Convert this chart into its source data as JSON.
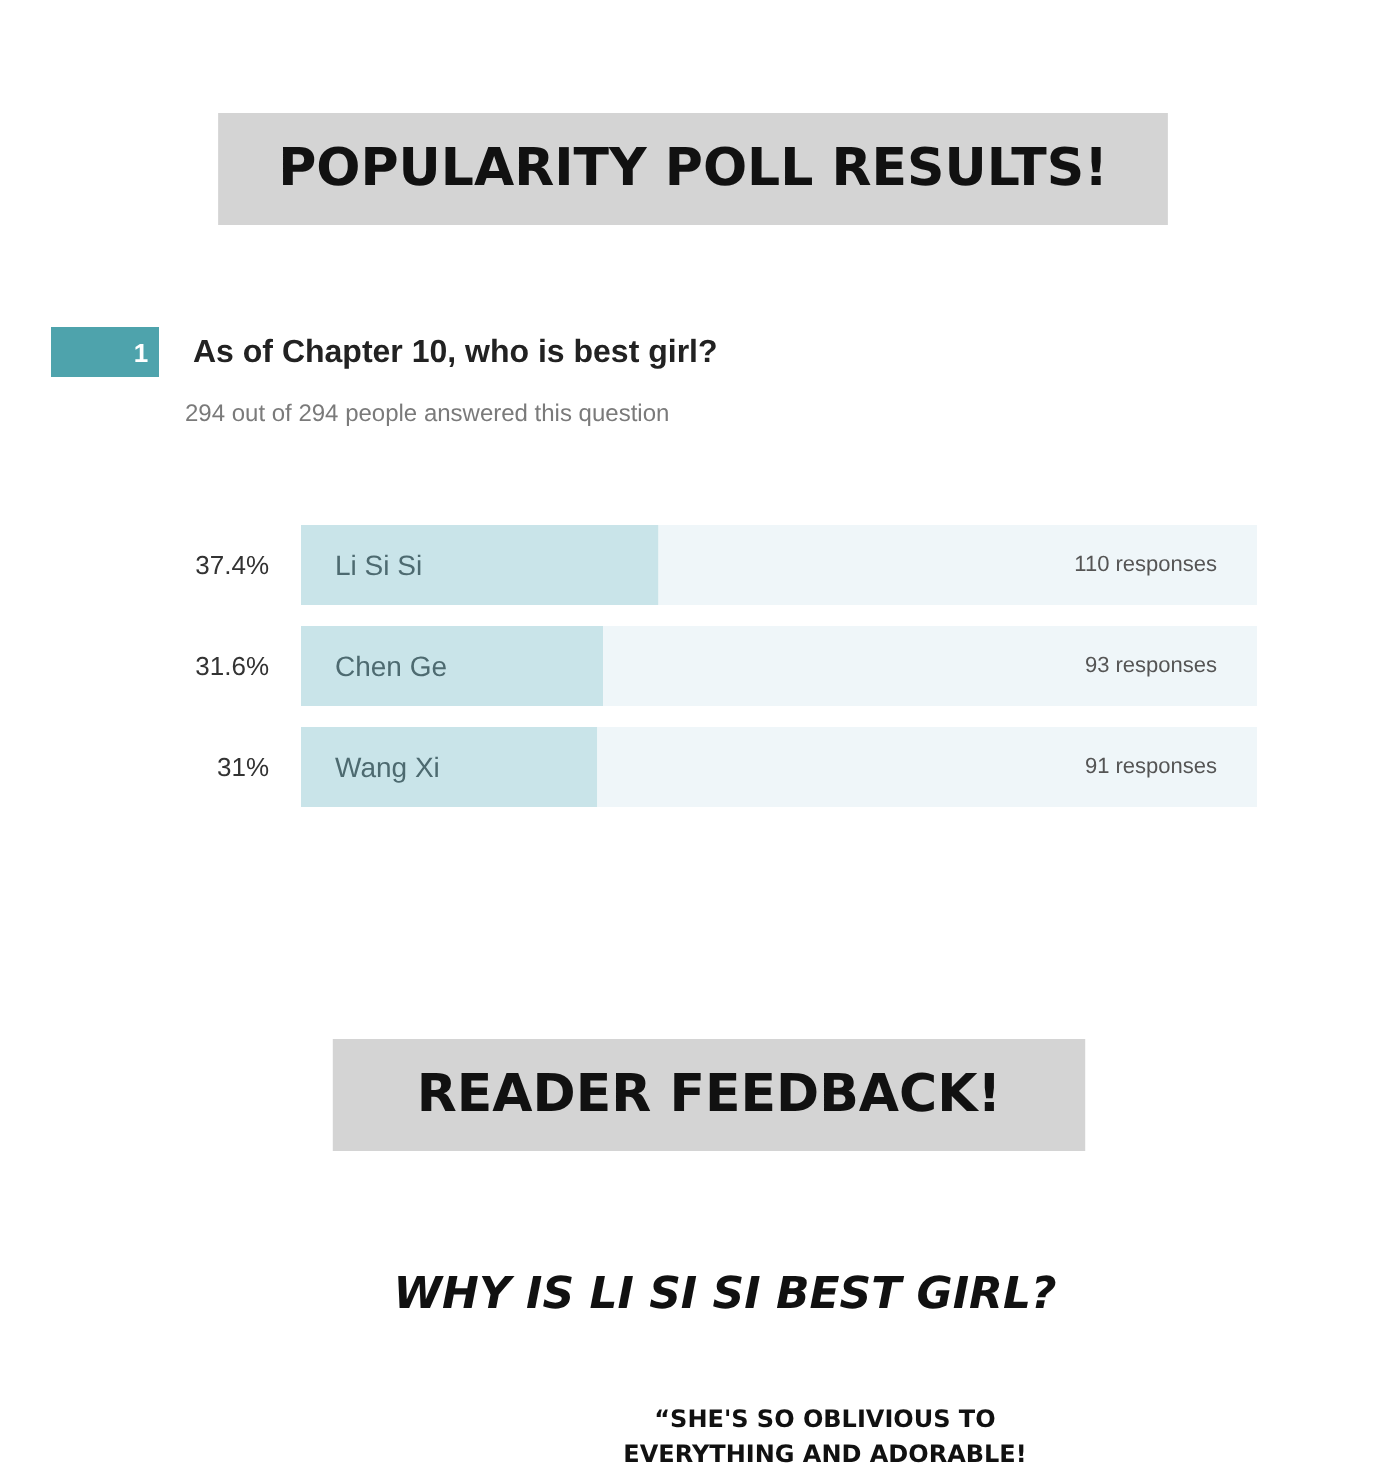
{
  "chart_data": {
    "type": "bar",
    "orientation": "horizontal",
    "stacked": true,
    "title": "POPULARITY POLL RESULTS!",
    "subtitle": "As of Chapter 10, who is best girl?",
    "categories": [
      "Li Si Si",
      "Chen Ge",
      "Wang Xi"
    ],
    "series": [
      {
        "color": "#c9e4e9",
        "values": [
          37.4,
          31.6,
          31
        ],
        "value_labels": [
          "37.4%",
          "31.6%",
          "31%"
        ]
      },
      {
        "color": "#eff6f9",
        "values": [
          62.6,
          68.4,
          69
        ]
      }
    ],
    "xlim": [
      0,
      100
    ],
    "tick_labels": false,
    "annotations": [
      "1",
      "294 out of 294 people answered this question",
      {
        "text": "110 responses",
        "y": "Li Si Si"
      },
      {
        "text": "93 responses",
        "y": "Chen Ge"
      },
      {
        "text": "91 responses",
        "y": "Wang Xi"
      },
      "READER FEEDBACK!",
      "WHY IS LI SI SI BEST GIRL?",
      "“SHE'S SO OBLIVIOUS TO\nEVERYTHING AND ADORABLE!"
    ]
  }
}
